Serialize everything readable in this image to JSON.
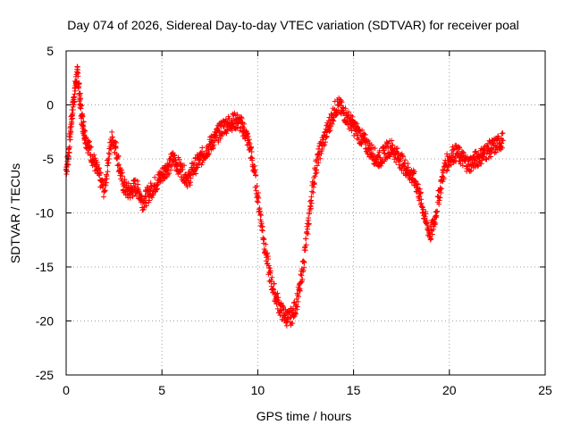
{
  "chart_data": {
    "type": "scatter",
    "title": "Day 074 of 2026, Sidereal Day-to-day VTEC variation (SDTVAR) for receiver poal",
    "xlabel": "GPS time / hours",
    "ylabel": "SDTVAR / TECUs",
    "xlim": [
      0,
      25
    ],
    "ylim": [
      -25,
      5
    ],
    "xticks": [
      0,
      5,
      10,
      15,
      20,
      25
    ],
    "yticks": [
      -25,
      -20,
      -15,
      -10,
      -5,
      0,
      5
    ],
    "grid": true,
    "marker": "+",
    "series": [
      {
        "name": "SDTVAR",
        "color": "#ff0000",
        "x": [
          0.0,
          0.1,
          0.2,
          0.3,
          0.4,
          0.5,
          0.6,
          0.7,
          0.8,
          0.9,
          1.0,
          1.2,
          1.4,
          1.6,
          1.8,
          2.0,
          2.2,
          2.4,
          2.6,
          2.8,
          3.0,
          3.2,
          3.4,
          3.6,
          3.8,
          4.0,
          4.2,
          4.4,
          4.6,
          4.8,
          5.0,
          5.2,
          5.4,
          5.6,
          5.8,
          6.0,
          6.2,
          6.4,
          6.6,
          6.8,
          7.0,
          7.2,
          7.4,
          7.6,
          7.8,
          8.0,
          8.2,
          8.4,
          8.6,
          8.8,
          9.0,
          9.2,
          9.4,
          9.6,
          9.8,
          10.0,
          10.2,
          10.4,
          10.6,
          10.8,
          11.0,
          11.2,
          11.4,
          11.6,
          11.8,
          12.0,
          12.2,
          12.4,
          12.6,
          12.8,
          13.0,
          13.2,
          13.4,
          13.6,
          13.8,
          14.0,
          14.2,
          14.4,
          14.6,
          14.8,
          15.0,
          15.2,
          15.4,
          15.6,
          15.8,
          16.0,
          16.2,
          16.4,
          16.6,
          16.8,
          17.0,
          17.2,
          17.4,
          17.6,
          17.8,
          18.0,
          18.2,
          18.4,
          18.6,
          18.8,
          19.0,
          19.2,
          19.4,
          19.6,
          19.8,
          20.0,
          20.2,
          20.4,
          20.6,
          20.8,
          21.0,
          21.2,
          21.4,
          21.6,
          21.8,
          22.0,
          22.2,
          22.4,
          22.6,
          22.8
        ],
        "y": [
          -6.0,
          -5.0,
          -3.0,
          -1.0,
          0.5,
          2.0,
          3.0,
          1.0,
          -1.0,
          -2.0,
          -3.0,
          -4.0,
          -5.0,
          -6.0,
          -7.0,
          -8.0,
          -5.0,
          -3.0,
          -4.0,
          -6.0,
          -7.5,
          -8.0,
          -8.0,
          -7.5,
          -8.0,
          -9.0,
          -8.5,
          -8.0,
          -7.5,
          -7.0,
          -6.5,
          -6.0,
          -5.5,
          -5.0,
          -5.5,
          -6.0,
          -6.5,
          -7.0,
          -6.0,
          -5.5,
          -5.0,
          -4.5,
          -4.0,
          -3.5,
          -3.0,
          -2.5,
          -2.0,
          -1.8,
          -1.6,
          -1.5,
          -1.6,
          -2.0,
          -2.8,
          -4.0,
          -6.0,
          -8.5,
          -11.0,
          -13.5,
          -15.5,
          -17.0,
          -18.0,
          -19.0,
          -19.5,
          -19.8,
          -19.5,
          -18.5,
          -17.0,
          -14.5,
          -11.5,
          -8.5,
          -6.0,
          -4.5,
          -3.5,
          -2.5,
          -1.5,
          -0.5,
          0.0,
          -0.5,
          -1.0,
          -1.5,
          -2.0,
          -2.5,
          -3.0,
          -3.5,
          -4.0,
          -4.5,
          -5.0,
          -5.0,
          -4.5,
          -4.0,
          -4.0,
          -4.5,
          -5.0,
          -5.5,
          -6.0,
          -6.5,
          -7.0,
          -8.0,
          -9.5,
          -11.0,
          -12.0,
          -11.0,
          -9.0,
          -7.0,
          -5.5,
          -5.0,
          -4.5,
          -4.5,
          -4.8,
          -5.2,
          -5.5,
          -5.3,
          -5.0,
          -4.8,
          -4.5,
          -4.2,
          -4.0,
          -3.8,
          -3.5,
          -3.3
        ]
      }
    ]
  }
}
